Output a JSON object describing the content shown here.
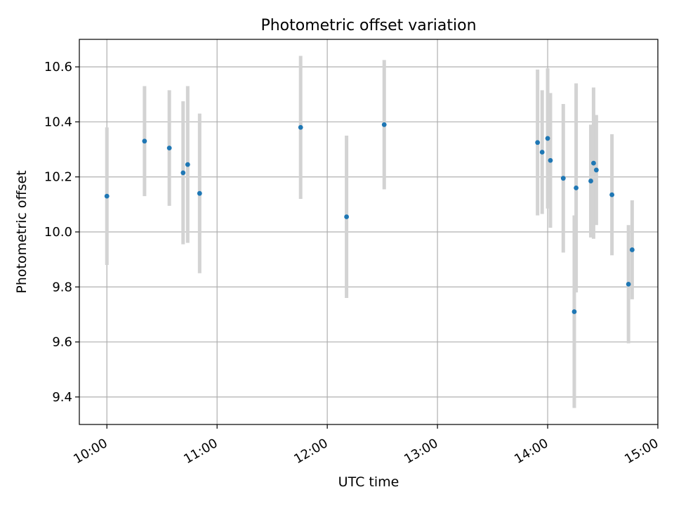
{
  "chart_data": {
    "type": "scatter",
    "title": "Photometric offset variation",
    "xlabel": "UTC time",
    "ylabel": "Photometric offset",
    "xlim": [
      "09:45",
      "15:00"
    ],
    "ylim": [
      9.3,
      10.7
    ],
    "x_ticks": [
      "10:00",
      "11:00",
      "12:00",
      "13:00",
      "14:00",
      "15:00"
    ],
    "y_ticks": [
      9.4,
      9.6,
      9.8,
      10.0,
      10.2,
      10.4,
      10.6
    ],
    "y_tick_labels": [
      "9.4",
      "9.6",
      "9.8",
      "10.0",
      "10.2",
      "10.4",
      "10.6"
    ],
    "grid": true,
    "marker_color": "#1f77b4",
    "errorbar_color": "#d3d3d3",
    "points": [
      {
        "time": "10:00:00",
        "y": 10.13,
        "err": 0.25
      },
      {
        "time": "10:20:30",
        "y": 10.33,
        "err": 0.2
      },
      {
        "time": "10:34:00",
        "y": 10.305,
        "err": 0.21
      },
      {
        "time": "10:41:30",
        "y": 10.215,
        "err": 0.26
      },
      {
        "time": "10:44:00",
        "y": 10.245,
        "err": 0.285
      },
      {
        "time": "10:50:30",
        "y": 10.14,
        "err": 0.29
      },
      {
        "time": "11:45:30",
        "y": 10.38,
        "err": 0.26
      },
      {
        "time": "12:10:30",
        "y": 10.055,
        "err": 0.295
      },
      {
        "time": "12:31:00",
        "y": 10.39,
        "err": 0.235
      },
      {
        "time": "13:54:30",
        "y": 10.325,
        "err": 0.265
      },
      {
        "time": "13:57:00",
        "y": 10.29,
        "err": 0.225
      },
      {
        "time": "14:00:00",
        "y": 10.34,
        "err": 0.255
      },
      {
        "time": "14:01:30",
        "y": 10.26,
        "err": 0.245
      },
      {
        "time": "14:08:30",
        "y": 10.195,
        "err": 0.27
      },
      {
        "time": "14:14:30",
        "y": 9.71,
        "err": 0.35
      },
      {
        "time": "14:15:30",
        "y": 10.16,
        "err": 0.38
      },
      {
        "time": "14:23:30",
        "y": 10.185,
        "err": 0.205
      },
      {
        "time": "14:25:00",
        "y": 10.25,
        "err": 0.275
      },
      {
        "time": "14:26:30",
        "y": 10.225,
        "err": 0.2
      },
      {
        "time": "14:35:00",
        "y": 10.135,
        "err": 0.22
      },
      {
        "time": "14:44:00",
        "y": 9.81,
        "err": 0.215
      },
      {
        "time": "14:46:00",
        "y": 9.935,
        "err": 0.18
      }
    ]
  }
}
